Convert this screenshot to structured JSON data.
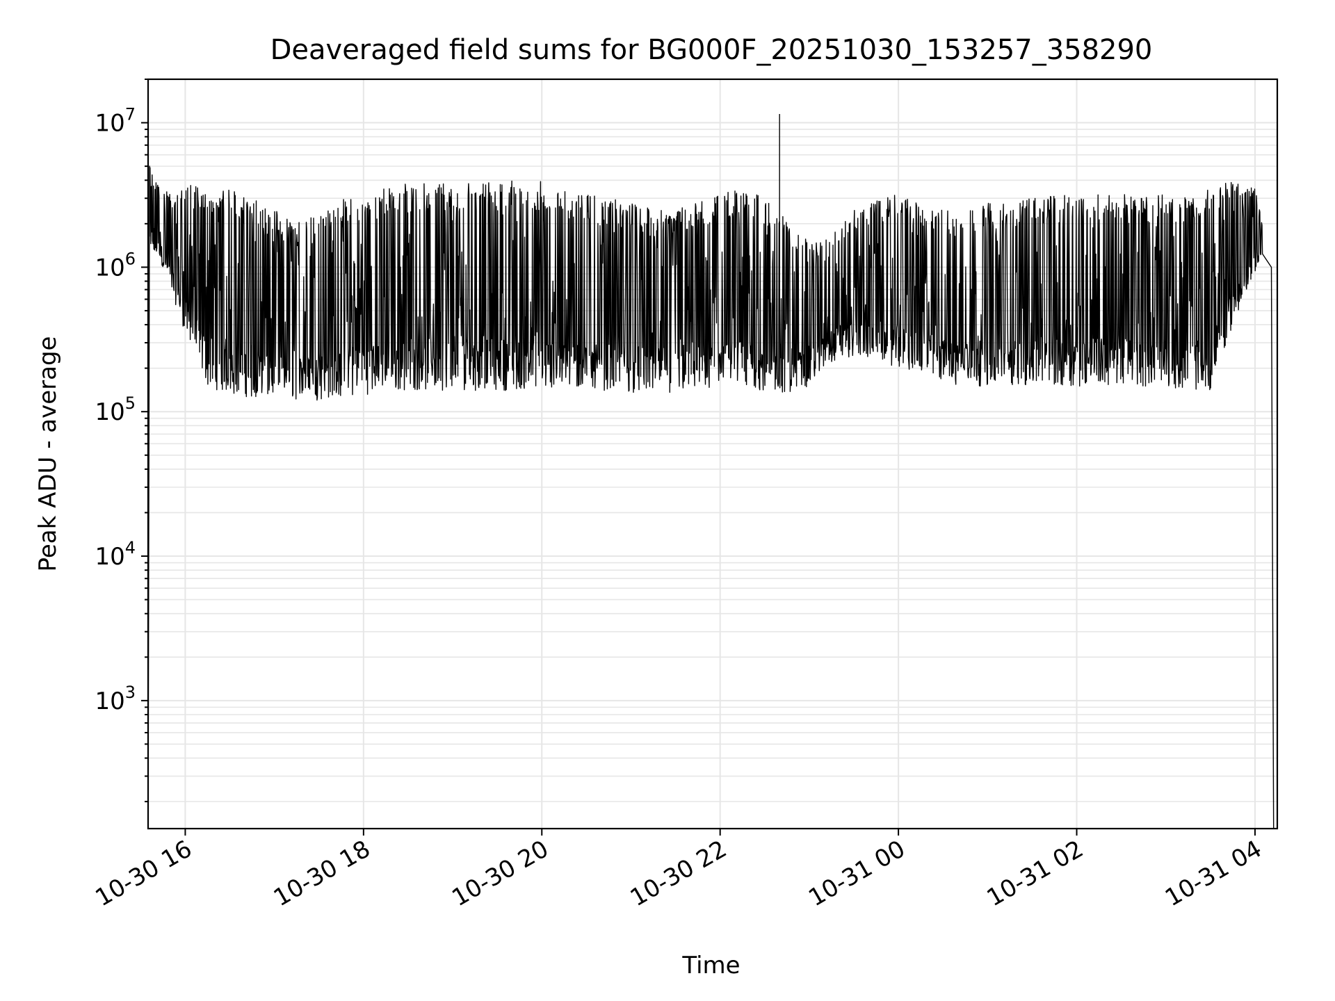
{
  "chart_data": {
    "type": "line",
    "title": "Deaveraged field sums for BG000F_20251030_153257_358290",
    "xlabel": "Time",
    "ylabel": "Peak ADU - average",
    "yscale": "log",
    "xlim": [
      "2025-10-30T15:35",
      "2025-10-31T04:15"
    ],
    "ylim": [
      130,
      20000000
    ],
    "grid": "major and minor",
    "line_color": "#000000",
    "x_ticks": [
      {
        "value": "2025-10-30T16:00",
        "label": "10-30 16"
      },
      {
        "value": "2025-10-30T18:00",
        "label": "10-30 18"
      },
      {
        "value": "2025-10-30T20:00",
        "label": "10-30 20"
      },
      {
        "value": "2025-10-30T22:00",
        "label": "10-30 22"
      },
      {
        "value": "2025-10-31T00:00",
        "label": "10-31 00"
      },
      {
        "value": "2025-10-31T02:00",
        "label": "10-31 02"
      },
      {
        "value": "2025-10-31T04:00",
        "label": "10-31 04"
      }
    ],
    "y_ticks": [
      {
        "value": 1000,
        "base": "10",
        "exp": "3"
      },
      {
        "value": 10000,
        "base": "10",
        "exp": "4"
      },
      {
        "value": 100000,
        "base": "10",
        "exp": "5"
      },
      {
        "value": 1000000,
        "base": "10",
        "exp": "6"
      },
      {
        "value": 10000000,
        "base": "10",
        "exp": "7"
      }
    ],
    "series_envelope": {
      "x": [
        "2025-10-30T15:36",
        "2025-10-30T15:40",
        "2025-10-30T15:45",
        "2025-10-30T16:00",
        "2025-10-30T16:15",
        "2025-10-30T16:30",
        "2025-10-30T16:45",
        "2025-10-30T17:00",
        "2025-10-30T17:15",
        "2025-10-30T17:30",
        "2025-10-30T17:45",
        "2025-10-30T18:00",
        "2025-10-30T18:15",
        "2025-10-30T18:30",
        "2025-10-30T18:45",
        "2025-10-30T19:00",
        "2025-10-30T19:15",
        "2025-10-30T19:30",
        "2025-10-30T19:45",
        "2025-10-30T20:00",
        "2025-10-30T20:15",
        "2025-10-30T20:30",
        "2025-10-30T20:45",
        "2025-10-30T21:00",
        "2025-10-30T21:15",
        "2025-10-30T21:30",
        "2025-10-30T21:45",
        "2025-10-30T22:00",
        "2025-10-30T22:15",
        "2025-10-30T22:30",
        "2025-10-30T22:45",
        "2025-10-30T23:00",
        "2025-10-30T23:15",
        "2025-10-30T23:30",
        "2025-10-30T23:45",
        "2025-10-31T00:00",
        "2025-10-31T00:15",
        "2025-10-31T00:30",
        "2025-10-31T00:45",
        "2025-10-31T01:00",
        "2025-10-31T01:15",
        "2025-10-31T01:30",
        "2025-10-31T01:45",
        "2025-10-31T02:00",
        "2025-10-31T02:15",
        "2025-10-31T02:30",
        "2025-10-31T02:45",
        "2025-10-31T03:00",
        "2025-10-31T03:15",
        "2025-10-31T03:30",
        "2025-10-31T03:45",
        "2025-10-31T04:00",
        "2025-10-31T04:05"
      ],
      "high": [
        5000000,
        4000000,
        3500000,
        3800000,
        3500000,
        3600000,
        3000000,
        2500000,
        2000000,
        2500000,
        3000000,
        3200000,
        3600000,
        3800000,
        3900000,
        3800000,
        3800000,
        3900000,
        4300000,
        4000000,
        3500000,
        3200000,
        3000000,
        2800000,
        2500000,
        2500000,
        3000000,
        3200000,
        3500000,
        3000000,
        2200000,
        1500000,
        1800000,
        2500000,
        3000000,
        3200000,
        2800000,
        2500000,
        2500000,
        2800000,
        2800000,
        3000000,
        3200000,
        3200000,
        3300000,
        3200000,
        3100000,
        3200000,
        3200000,
        3500000,
        4000000,
        3500000,
        2000000
      ],
      "low": [
        1000000,
        1200000,
        1000000,
        350000,
        150000,
        130000,
        125000,
        125000,
        120000,
        120000,
        125000,
        130000,
        140000,
        140000,
        140000,
        140000,
        140000,
        140000,
        140000,
        140000,
        140000,
        140000,
        140000,
        135000,
        135000,
        135000,
        140000,
        140000,
        140000,
        140000,
        130000,
        150000,
        220000,
        240000,
        230000,
        200000,
        180000,
        160000,
        150000,
        150000,
        150000,
        150000,
        150000,
        150000,
        150000,
        150000,
        150000,
        150000,
        140000,
        140000,
        400000,
        900000,
        1200000
      ]
    }
  }
}
